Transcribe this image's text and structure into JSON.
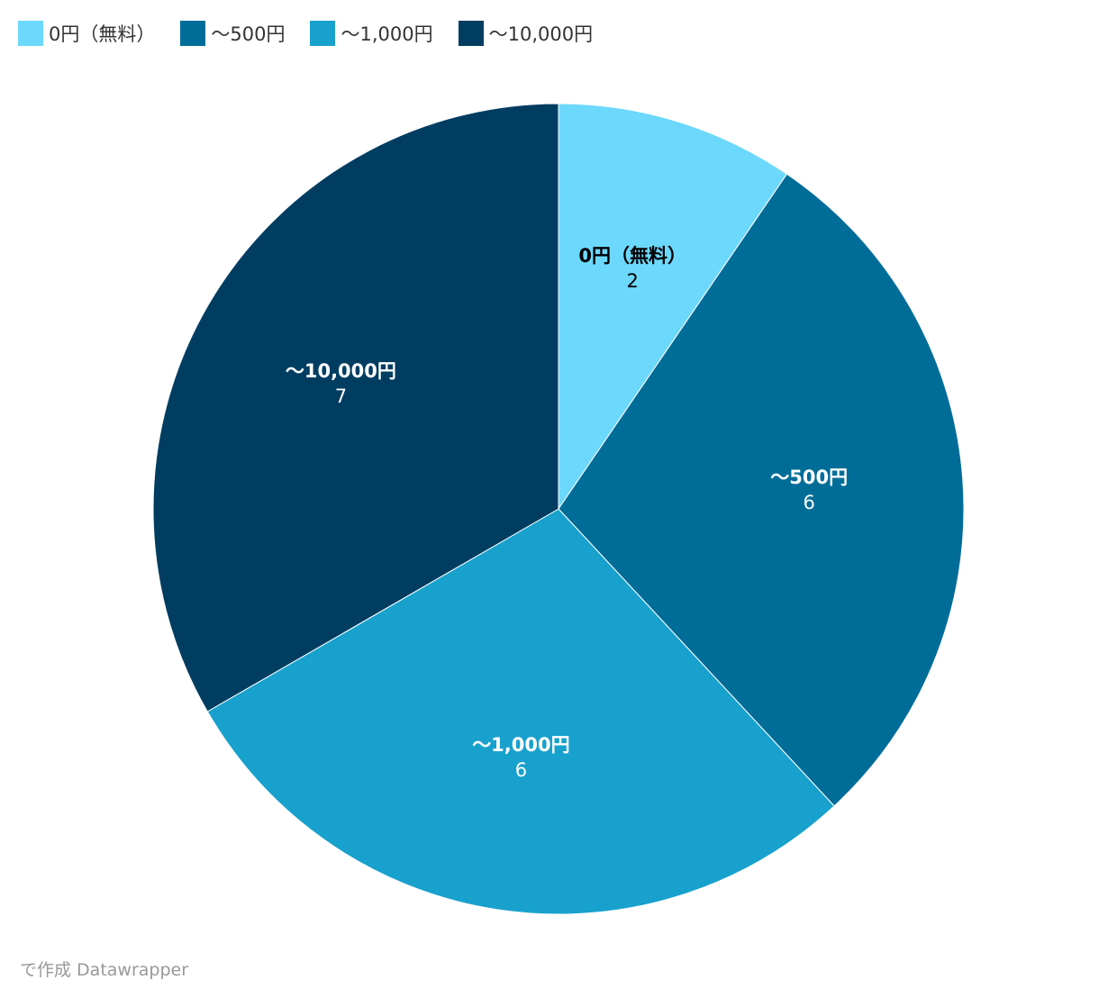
{
  "chart_data": {
    "type": "pie",
    "categories": [
      "0円（無料）",
      "〜500円",
      "〜1,000円",
      "〜10,000円"
    ],
    "values": [
      2,
      6,
      6,
      7
    ],
    "colors": [
      "#6cd8fc",
      "#006d98",
      "#18a1cd",
      "#003d61"
    ],
    "legend": "top-left",
    "footer": "で作成 Datawrapper"
  }
}
